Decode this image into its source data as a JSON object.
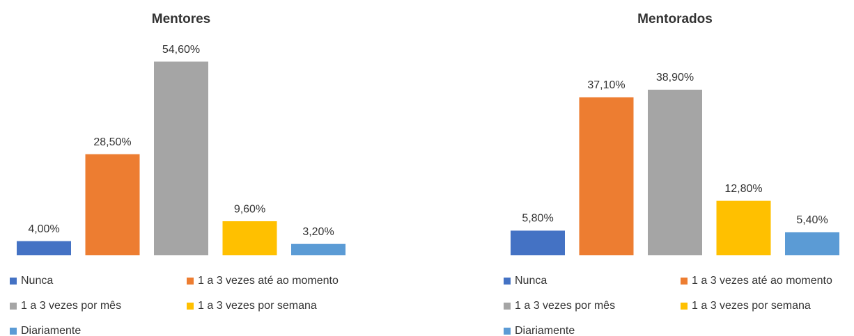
{
  "chart_data": [
    {
      "type": "bar",
      "title": "Mentores",
      "ylim": [
        0,
        60
      ],
      "series": [
        {
          "name": "Nunca",
          "color": "#4472c4",
          "values": [
            4.0
          ],
          "value_labels": [
            "4,00%"
          ]
        },
        {
          "name": "1 a 3 vezes até ao momento",
          "color": "#ed7d31",
          "values": [
            28.5
          ],
          "value_labels": [
            "28,50%"
          ]
        },
        {
          "name": "1 a 3 vezes por mês",
          "color": "#a5a5a5",
          "values": [
            54.6
          ],
          "value_labels": [
            "54,60%"
          ]
        },
        {
          "name": "1 a 3 vezes por semana",
          "color": "#ffc000",
          "values": [
            9.6
          ],
          "value_labels": [
            "9,60%"
          ]
        },
        {
          "name": "Diariamente",
          "color": "#5b9bd5",
          "values": [
            3.2
          ],
          "value_labels": [
            "3,20%"
          ]
        }
      ]
    },
    {
      "type": "bar",
      "title": "Mentorados",
      "ylim": [
        0,
        50
      ],
      "series": [
        {
          "name": "Nunca",
          "color": "#4472c4",
          "values": [
            5.8
          ],
          "value_labels": [
            "5,80%"
          ]
        },
        {
          "name": "1 a 3 vezes até ao momento",
          "color": "#ed7d31",
          "values": [
            37.1
          ],
          "value_labels": [
            "37,10%"
          ]
        },
        {
          "name": "1 a 3 vezes por mês",
          "color": "#a5a5a5",
          "values": [
            38.9
          ],
          "value_labels": [
            "38,90%"
          ]
        },
        {
          "name": "1 a 3 vezes por semana",
          "color": "#ffc000",
          "values": [
            12.8
          ],
          "value_labels": [
            "12,80%"
          ]
        },
        {
          "name": "Diariamente",
          "color": "#5b9bd5",
          "values": [
            5.4
          ],
          "value_labels": [
            "5,40%"
          ]
        }
      ]
    }
  ]
}
